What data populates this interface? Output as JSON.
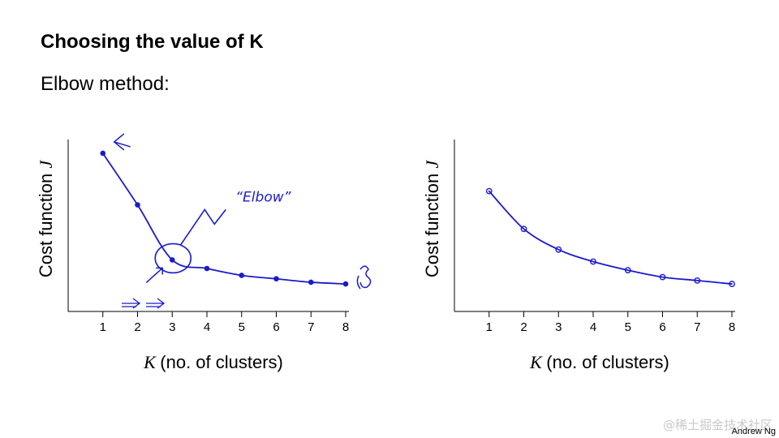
{
  "slide": {
    "title": "Choosing the value of K",
    "subtitle": "Elbow method:",
    "footer": "Andrew Ng",
    "watermark": "@稀土掘金技术社区"
  },
  "colors": {
    "ink": "#1a1acc",
    "axis": "#000000"
  },
  "chart_data": [
    {
      "type": "line",
      "x": [
        1,
        2,
        3,
        4,
        5,
        6,
        7,
        8
      ],
      "series": [
        {
          "values": [
            0.92,
            0.62,
            0.3,
            0.25,
            0.21,
            0.19,
            0.17,
            0.16
          ]
        }
      ],
      "xlabel_symbol": "K",
      "xlabel": "(no. of clusters)",
      "ylabel_text": "Cost function",
      "ylabel_symbol": "J",
      "xlim": [
        0,
        8
      ],
      "ylim": [
        0,
        1
      ],
      "grid": false,
      "annotations": [
        "“Elbow”"
      ]
    },
    {
      "type": "line",
      "x": [
        1,
        2,
        3,
        4,
        5,
        6,
        7,
        8
      ],
      "series": [
        {
          "values": [
            0.7,
            0.48,
            0.36,
            0.29,
            0.24,
            0.2,
            0.18,
            0.16
          ]
        }
      ],
      "xlabel_symbol": "K",
      "xlabel": "(no. of clusters)",
      "ylabel_text": "Cost function",
      "ylabel_symbol": "J",
      "xlim": [
        0,
        8
      ],
      "ylim": [
        0,
        1
      ],
      "grid": false
    }
  ]
}
